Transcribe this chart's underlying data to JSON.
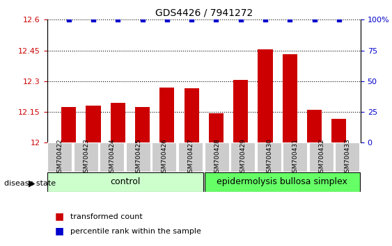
{
  "title": "GDS4426 / 7941272",
  "samples": [
    "GSM700422",
    "GSM700423",
    "GSM700424",
    "GSM700425",
    "GSM700426",
    "GSM700427",
    "GSM700428",
    "GSM700429",
    "GSM700430",
    "GSM700431",
    "GSM700432",
    "GSM700433"
  ],
  "bar_values": [
    12.175,
    12.18,
    12.195,
    12.175,
    12.27,
    12.265,
    12.145,
    12.305,
    12.455,
    12.43,
    12.16,
    12.115
  ],
  "percentile_values": [
    100,
    100,
    100,
    100,
    100,
    100,
    100,
    100,
    100,
    100,
    100,
    100
  ],
  "bar_color": "#cc0000",
  "dot_color": "#0000cc",
  "ylim_left": [
    12.0,
    12.6
  ],
  "ylim_right": [
    0,
    100
  ],
  "yticks_left": [
    12.0,
    12.15,
    12.3,
    12.45,
    12.6
  ],
  "yticks_right": [
    0,
    25,
    50,
    75,
    100
  ],
  "ytick_labels_left": [
    "12",
    "12.15",
    "12.3",
    "12.45",
    "12.6"
  ],
  "ytick_labels_right": [
    "0",
    "25",
    "50",
    "75",
    "100%"
  ],
  "grid_values": [
    12.15,
    12.3,
    12.45
  ],
  "control_samples": [
    "GSM700422",
    "GSM700423",
    "GSM700424",
    "GSM700425",
    "GSM700426",
    "GSM700427"
  ],
  "disease_samples": [
    "GSM700428",
    "GSM700429",
    "GSM700430",
    "GSM700431",
    "GSM700432",
    "GSM700433"
  ],
  "control_label": "control",
  "disease_label": "epidermolysis bullosa simplex",
  "disease_state_label": "disease state",
  "legend_bar_label": "transformed count",
  "legend_dot_label": "percentile rank within the sample",
  "control_color": "#ccffcc",
  "disease_color": "#66ff66",
  "label_area_color": "#cccccc",
  "background_color": "#ffffff",
  "bar_width": 0.6
}
